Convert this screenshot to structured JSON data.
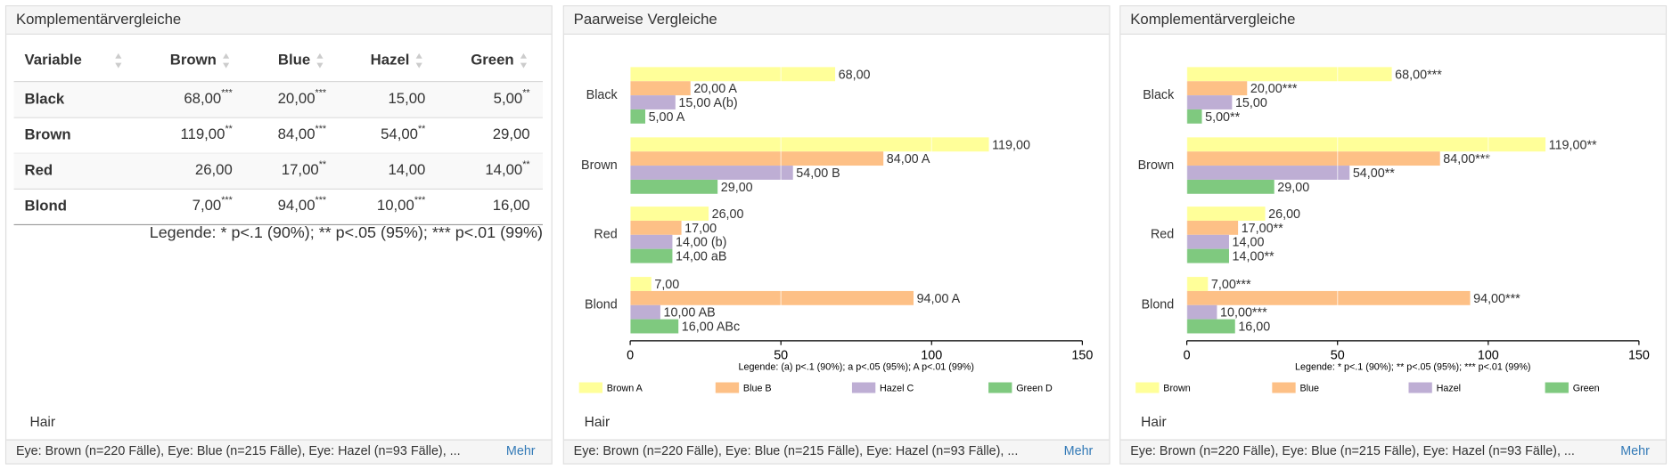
{
  "panels": [
    {
      "title": "Komplementärvergleiche",
      "table": {
        "header": [
          "Variable",
          "Brown",
          "Blue",
          "Hazel",
          "Green"
        ],
        "rows": [
          {
            "label": "Black",
            "cells": [
              {
                "text": "68,00",
                "sup": "***"
              },
              {
                "text": "20,00",
                "sup": "***"
              },
              {
                "text": "15,00"
              },
              {
                "text": "5,00",
                "sup": "**"
              }
            ]
          },
          {
            "label": "Brown",
            "cells": [
              {
                "text": "119,00",
                "sup": "**"
              },
              {
                "text": "84,00",
                "sup": "***"
              },
              {
                "text": "54,00",
                "sup": "**"
              },
              {
                "text": "29,00"
              }
            ]
          },
          {
            "label": "Red",
            "cells": [
              {
                "text": "26,00"
              },
              {
                "text": "17,00",
                "sup": "**"
              },
              {
                "text": "14,00"
              },
              {
                "text": "14,00",
                "sup": "**"
              }
            ]
          },
          {
            "label": "Blond",
            "cells": [
              {
                "text": "7,00",
                "sup": "***"
              },
              {
                "text": "94,00",
                "sup": "***"
              },
              {
                "text": "10,00",
                "sup": "***"
              },
              {
                "text": "16,00"
              }
            ]
          }
        ]
      },
      "legend": "Legende: * p<.1 (90%); ** p<.05 (95%); *** p<.01 (99%)",
      "label": "Hair",
      "footer": "Eye: Brown (n=220 Fälle), Eye: Blue (n=215 Fälle), Eye: Hazel (n=93 Fälle), ...",
      "more": "Mehr"
    },
    {
      "title": "Paarweise Vergleiche",
      "chart": {
        "type": "bar",
        "orientation": "horizontal",
        "categories": [
          "Black",
          "Brown",
          "Red",
          "Blond"
        ],
        "series": [
          {
            "name": "Brown A",
            "color": "#ffff99",
            "values": [
              68,
              119,
              26,
              7
            ],
            "value_labels": [
              "68,00",
              "119,00",
              "26,00",
              "7,00"
            ]
          },
          {
            "name": "Blue B",
            "color": "#fdc086",
            "values": [
              20,
              84,
              17,
              94
            ],
            "value_labels": [
              "20,00 A",
              "84,00 A",
              "17,00",
              "94,00 A"
            ]
          },
          {
            "name": "Hazel C",
            "color": "#beaed4",
            "values": [
              15,
              54,
              14,
              10
            ],
            "value_labels": [
              "15,00 A(b)",
              "54,00 B",
              "14,00 (b)",
              "10,00 AB"
            ]
          },
          {
            "name": "Green D",
            "color": "#7fc97f",
            "values": [
              5,
              29,
              14,
              16
            ],
            "value_labels": [
              "5,00 A",
              "29,00",
              "14,00 aB",
              "16,00 ABc"
            ]
          }
        ],
        "xlim": [
          0,
          150
        ],
        "xticks": [
          0,
          50,
          100,
          150
        ],
        "note": "Legende: (a) p<.1 (90%); a p<.05 (95%); A p<.01 (99%)"
      },
      "label": "Hair",
      "footer": "Eye: Brown (n=220 Fälle), Eye: Blue (n=215 Fälle), Eye: Hazel (n=93 Fälle), ...",
      "more": "Mehr"
    },
    {
      "title": "Komplementärvergleiche",
      "chart": {
        "type": "bar",
        "orientation": "horizontal",
        "categories": [
          "Black",
          "Brown",
          "Red",
          "Blond"
        ],
        "series": [
          {
            "name": "Brown",
            "color": "#ffff99",
            "values": [
              68,
              119,
              26,
              7
            ],
            "value_labels": [
              "68,00***",
              "119,00**",
              "26,00",
              "7,00***"
            ]
          },
          {
            "name": "Blue",
            "color": "#fdc086",
            "values": [
              20,
              84,
              17,
              94
            ],
            "value_labels": [
              "20,00***",
              "84,00***",
              "17,00**",
              "94,00***"
            ]
          },
          {
            "name": "Hazel",
            "color": "#beaed4",
            "values": [
              15,
              54,
              14,
              10
            ],
            "value_labels": [
              "15,00",
              "54,00**",
              "14,00",
              "10,00***"
            ]
          },
          {
            "name": "Green",
            "color": "#7fc97f",
            "values": [
              5,
              29,
              14,
              16
            ],
            "value_labels": [
              "5,00**",
              "29,00",
              "14,00**",
              "16,00"
            ]
          }
        ],
        "xlim": [
          0,
          150
        ],
        "xticks": [
          0,
          50,
          100,
          150
        ],
        "note": "Legende: * p<.1 (90%); ** p<.05 (95%); *** p<.01 (99%)"
      },
      "label": "Hair",
      "footer": "Eye: Brown (n=220 Fälle), Eye: Blue (n=215 Fälle), Eye: Hazel (n=93 Fälle), ...",
      "more": "Mehr"
    }
  ]
}
